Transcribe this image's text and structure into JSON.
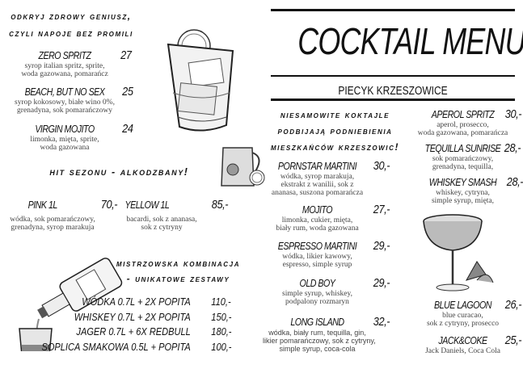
{
  "nonalcoholic": {
    "heading": [
      "Odkryj zdrowy geniusz,",
      "czyli napoje bez promili"
    ],
    "items": [
      {
        "name": "ZERO SPRITZ",
        "price": "27",
        "desc": [
          "syrop italian spritz, sprite,",
          "woda gazowana,  pomarańcz"
        ]
      },
      {
        "name": "BEACH, BUT NO SEX",
        "price": "25",
        "desc": [
          "syrop kokosowy, białe wino 0%,",
          "grenadyna, sok pomarańczowy"
        ]
      },
      {
        "name": "VIRGIN MOJITO",
        "price": "24",
        "desc": [
          "limonka, mięta, sprite,",
          "woda gazowana"
        ]
      }
    ]
  },
  "season": {
    "heading": "Hit sezonu - alkodzbany!",
    "items": [
      {
        "name": "PINK 1L",
        "price": "70,-",
        "desc": [
          "wódka, sok pomarańczowy,",
          "grenadyna, syrop marakuja"
        ]
      },
      {
        "name": "YELLOW 1L",
        "price": "85,-",
        "desc": [
          "bacardi, sok z ananasa,",
          "sok z cytryny"
        ]
      }
    ]
  },
  "combos": {
    "heading": [
      "Mistrzowska kombinacja",
      "- unikatowe zestawy"
    ],
    "items": [
      {
        "name": "WÓDKA 0.7L + 2X POPITA",
        "price": "110,-"
      },
      {
        "name": "WHISKEY 0.7L + 2X POPITA",
        "price": "150,-"
      },
      {
        "name": "JAGER 0.7L + 6X REDBULL",
        "price": "180,-"
      },
      {
        "name": "SOPLICA SMAKOWA 0.5L + POPITA",
        "price": "100,-"
      }
    ]
  },
  "header": {
    "title": "COCKTAIL MENU",
    "subtitle": "PIECYK KRZESZOWICE"
  },
  "cocktails": {
    "heading": [
      "Niesamowite koktajle",
      "podbijają podniebienia",
      "mieszkańców Krzeszowic!"
    ],
    "left": [
      {
        "name": "PORNSTAR MARTINI",
        "price": "30,-",
        "desc": [
          "wódka, syrop marakuja,",
          "ekstrakt z wanilii, sok z",
          "ananasa, suszona pomarańcza"
        ]
      },
      {
        "name": "MOJITO",
        "price": "27,-",
        "desc": [
          "limonka, cukier, mięta,",
          "biały rum, woda gazowana"
        ]
      },
      {
        "name": "ESPRESSO MARTINI",
        "price": "29,-",
        "desc": [
          "wódka, likier kawowy,",
          "espresso, simple syrup"
        ]
      },
      {
        "name": "OLD BOY",
        "price": "29,-",
        "desc": [
          "simple syrup, whiskey,",
          "podpalony rozmaryn"
        ]
      },
      {
        "name": "LONG ISLAND",
        "price": "32,-",
        "desc": [
          "wódka, biały rum, tequilla, gin,",
          "likier pomarańczowy, sok z cytryny,",
          "simple syrup, coca-cola"
        ]
      }
    ],
    "right": [
      {
        "name": "APEROL SPRITZ",
        "price": "30,-",
        "desc": [
          "aperol, prosecco,",
          "woda gazowana, pomarańcza"
        ]
      },
      {
        "name": "TEQUILLA SUNRISE",
        "price": "28,-",
        "desc": [
          "sok pomarańczowy,",
          "grenadyna, tequilla,"
        ]
      },
      {
        "name": "WHISKEY SMASH",
        "price": "28,-",
        "desc": [
          "whiskey, cytryna,",
          "simple syrup, mięta,"
        ]
      },
      {
        "name": "BLUE LAGOON",
        "price": "26,-",
        "desc": [
          "blue curacao,",
          "sok z cytryny, prosecco"
        ]
      },
      {
        "name": "JACK&COKE",
        "price": "25,-",
        "desc": [
          "Jack Daniels, Coca Cola"
        ]
      }
    ]
  }
}
